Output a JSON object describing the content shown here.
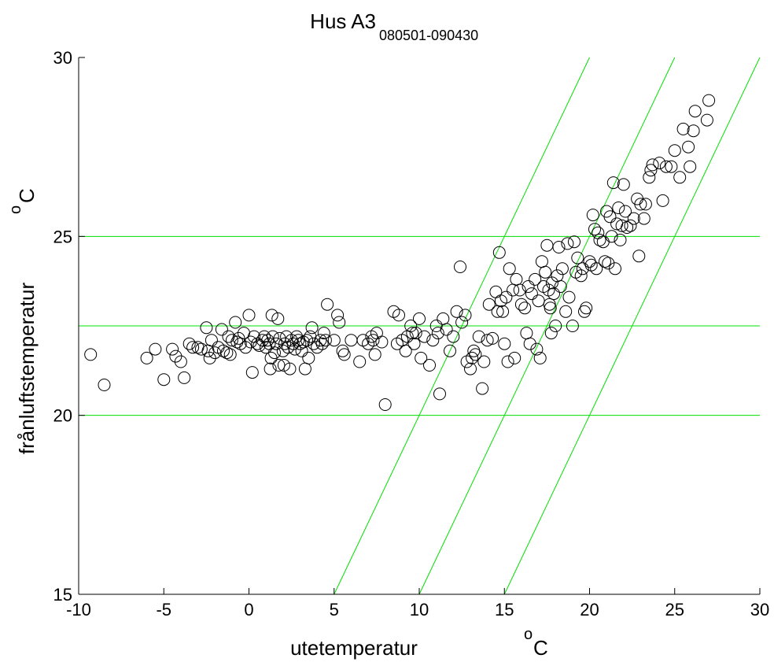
{
  "chart_data": {
    "type": "scatter",
    "title": "Hus A3",
    "subtitle": "080501-090430",
    "xlabel": "utetemperatur",
    "xunit_sup": "o",
    "xunit": "C",
    "ylabel": "frånluftstemperatur",
    "yunit_sup": "o",
    "yunit": "C",
    "xlim": [
      -10,
      30
    ],
    "ylim": [
      15,
      30
    ],
    "xticks": [
      -10,
      -5,
      0,
      5,
      10,
      15,
      20,
      25,
      30
    ],
    "yticks": [
      15,
      20,
      25,
      30
    ],
    "grid": false,
    "marker": "open-circle",
    "marker_color": "#000000",
    "reference_line_color": "#00e000",
    "horizontal_reference_lines": [
      20,
      22.5,
      25
    ],
    "diagonal_reference_lines": [
      {
        "x1": 5,
        "y1": 15,
        "x2": 20,
        "y2": 30
      },
      {
        "x1": 10,
        "y1": 15,
        "x2": 25,
        "y2": 30
      },
      {
        "x1": 15,
        "y1": 15,
        "x2": 30,
        "y2": 30
      }
    ],
    "points": [
      [
        -9.3,
        21.7
      ],
      [
        -8.5,
        20.85
      ],
      [
        -6.0,
        21.6
      ],
      [
        -5.5,
        21.85
      ],
      [
        -5.0,
        21.0
      ],
      [
        -4.5,
        21.85
      ],
      [
        -4.3,
        21.65
      ],
      [
        -4.0,
        21.5
      ],
      [
        -3.8,
        21.05
      ],
      [
        -3.5,
        22.0
      ],
      [
        -3.3,
        21.9
      ],
      [
        -3.0,
        21.9
      ],
      [
        -2.8,
        21.85
      ],
      [
        -2.5,
        22.45
      ],
      [
        -2.4,
        21.8
      ],
      [
        -2.3,
        21.6
      ],
      [
        -2.2,
        22.1
      ],
      [
        -2.0,
        21.75
      ],
      [
        -1.8,
        21.9
      ],
      [
        -1.6,
        22.4
      ],
      [
        -1.5,
        21.8
      ],
      [
        -1.3,
        21.75
      ],
      [
        -1.2,
        22.2
      ],
      [
        -1.1,
        21.7
      ],
      [
        -1.0,
        22.1
      ],
      [
        -0.8,
        22.6
      ],
      [
        -0.7,
        22.05
      ],
      [
        -0.6,
        22.15
      ],
      [
        -0.5,
        22.0
      ],
      [
        -0.3,
        22.3
      ],
      [
        -0.2,
        21.9
      ],
      [
        0.0,
        22.8
      ],
      [
        0.1,
        22.05
      ],
      [
        0.2,
        21.2
      ],
      [
        0.3,
        22.2
      ],
      [
        0.5,
        22.0
      ],
      [
        0.6,
        21.95
      ],
      [
        0.8,
        22.1
      ],
      [
        0.9,
        22.2
      ],
      [
        1.0,
        21.9
      ],
      [
        1.1,
        22.1
      ],
      [
        1.2,
        22.0
      ],
      [
        1.25,
        21.3
      ],
      [
        1.3,
        21.6
      ],
      [
        1.35,
        22.8
      ],
      [
        1.4,
        22.2
      ],
      [
        1.5,
        21.75
      ],
      [
        1.6,
        22.0
      ],
      [
        1.7,
        22.7
      ],
      [
        1.75,
        21.4
      ],
      [
        1.8,
        22.15
      ],
      [
        2.0,
        21.8
      ],
      [
        2.05,
        21.4
      ],
      [
        2.1,
        22.0
      ],
      [
        2.2,
        22.2
      ],
      [
        2.3,
        21.9
      ],
      [
        2.4,
        21.3
      ],
      [
        2.5,
        22.1
      ],
      [
        2.6,
        22.0
      ],
      [
        2.7,
        21.85
      ],
      [
        2.8,
        22.2
      ],
      [
        2.9,
        22.1
      ],
      [
        3.0,
        22.0
      ],
      [
        3.1,
        21.8
      ],
      [
        3.2,
        22.05
      ],
      [
        3.3,
        21.3
      ],
      [
        3.4,
        22.1
      ],
      [
        3.5,
        21.6
      ],
      [
        3.6,
        22.2
      ],
      [
        3.7,
        22.45
      ],
      [
        3.8,
        22.0
      ],
      [
        4.0,
        21.9
      ],
      [
        4.2,
        22.1
      ],
      [
        4.3,
        22.0
      ],
      [
        4.4,
        22.3
      ],
      [
        4.5,
        22.1
      ],
      [
        4.6,
        23.1
      ],
      [
        5.0,
        22.1
      ],
      [
        5.2,
        22.8
      ],
      [
        5.3,
        22.6
      ],
      [
        5.5,
        21.8
      ],
      [
        5.6,
        21.7
      ],
      [
        6.0,
        22.1
      ],
      [
        6.5,
        21.5
      ],
      [
        6.7,
        22.1
      ],
      [
        7.0,
        22.0
      ],
      [
        7.2,
        22.2
      ],
      [
        7.3,
        22.1
      ],
      [
        7.4,
        21.7
      ],
      [
        7.5,
        22.3
      ],
      [
        7.8,
        22.05
      ],
      [
        8.0,
        20.3
      ],
      [
        8.5,
        22.9
      ],
      [
        8.7,
        22.0
      ],
      [
        8.8,
        22.8
      ],
      [
        9.0,
        22.1
      ],
      [
        9.2,
        21.8
      ],
      [
        9.3,
        22.2
      ],
      [
        9.5,
        22.5
      ],
      [
        9.6,
        22.3
      ],
      [
        9.7,
        22.0
      ],
      [
        9.8,
        22.3
      ],
      [
        10.0,
        22.7
      ],
      [
        10.1,
        21.6
      ],
      [
        10.3,
        22.2
      ],
      [
        10.6,
        21.4
      ],
      [
        10.8,
        22.1
      ],
      [
        11.0,
        22.5
      ],
      [
        11.1,
        22.3
      ],
      [
        11.2,
        20.6
      ],
      [
        11.4,
        22.7
      ],
      [
        11.6,
        22.4
      ],
      [
        11.8,
        21.8
      ],
      [
        12.0,
        22.2
      ],
      [
        12.2,
        22.9
      ],
      [
        12.4,
        24.15
      ],
      [
        12.5,
        22.6
      ],
      [
        12.7,
        22.8
      ],
      [
        12.8,
        21.5
      ],
      [
        13.0,
        21.3
      ],
      [
        13.1,
        21.6
      ],
      [
        13.2,
        21.8
      ],
      [
        13.3,
        21.7
      ],
      [
        13.5,
        22.2
      ],
      [
        13.7,
        20.75
      ],
      [
        13.8,
        21.5
      ],
      [
        14.0,
        22.1
      ],
      [
        14.1,
        23.1
      ],
      [
        14.3,
        22.15
      ],
      [
        14.5,
        23.45
      ],
      [
        14.6,
        22.9
      ],
      [
        14.7,
        24.55
      ],
      [
        14.8,
        23.2
      ],
      [
        14.9,
        22.9
      ],
      [
        15.0,
        22.0
      ],
      [
        15.1,
        23.3
      ],
      [
        15.2,
        21.5
      ],
      [
        15.3,
        24.1
      ],
      [
        15.5,
        23.5
      ],
      [
        15.6,
        21.6
      ],
      [
        15.7,
        23.8
      ],
      [
        15.9,
        23.5
      ],
      [
        16.0,
        23.1
      ],
      [
        16.2,
        23.0
      ],
      [
        16.3,
        22.3
      ],
      [
        16.4,
        23.6
      ],
      [
        16.5,
        22.0
      ],
      [
        16.6,
        23.4
      ],
      [
        16.8,
        23.8
      ],
      [
        16.9,
        21.85
      ],
      [
        17.0,
        23.2
      ],
      [
        17.1,
        21.6
      ],
      [
        17.2,
        24.3
      ],
      [
        17.3,
        23.6
      ],
      [
        17.4,
        24.0
      ],
      [
        17.5,
        24.75
      ],
      [
        17.6,
        23.5
      ],
      [
        17.65,
        23.1
      ],
      [
        17.7,
        23.0
      ],
      [
        17.75,
        22.3
      ],
      [
        17.8,
        23.7
      ],
      [
        17.9,
        23.4
      ],
      [
        18.0,
        22.5
      ],
      [
        18.1,
        23.9
      ],
      [
        18.2,
        24.7
      ],
      [
        18.3,
        23.6
      ],
      [
        18.4,
        24.1
      ],
      [
        18.6,
        22.9
      ],
      [
        18.7,
        24.8
      ],
      [
        18.8,
        23.3
      ],
      [
        19.0,
        22.5
      ],
      [
        19.1,
        24.85
      ],
      [
        19.2,
        24.0
      ],
      [
        19.3,
        24.4
      ],
      [
        19.5,
        23.9
      ],
      [
        19.6,
        24.1
      ],
      [
        19.7,
        22.9
      ],
      [
        19.8,
        23.0
      ],
      [
        20.0,
        24.3
      ],
      [
        20.1,
        24.2
      ],
      [
        20.2,
        25.6
      ],
      [
        20.3,
        25.2
      ],
      [
        20.4,
        24.1
      ],
      [
        20.5,
        25.1
      ],
      [
        20.6,
        24.9
      ],
      [
        20.8,
        24.85
      ],
      [
        20.9,
        24.3
      ],
      [
        21.0,
        25.7
      ],
      [
        21.1,
        24.25
      ],
      [
        21.2,
        25.55
      ],
      [
        21.3,
        25.0
      ],
      [
        21.4,
        26.5
      ],
      [
        21.5,
        24.1
      ],
      [
        21.6,
        25.35
      ],
      [
        21.7,
        25.8
      ],
      [
        21.8,
        24.9
      ],
      [
        21.9,
        25.3
      ],
      [
        22.0,
        26.45
      ],
      [
        22.1,
        25.7
      ],
      [
        22.2,
        25.25
      ],
      [
        22.4,
        25.3
      ],
      [
        22.6,
        25.5
      ],
      [
        22.8,
        26.05
      ],
      [
        22.9,
        24.45
      ],
      [
        23.0,
        25.9
      ],
      [
        23.2,
        25.5
      ],
      [
        23.3,
        25.9
      ],
      [
        23.5,
        26.65
      ],
      [
        23.6,
        26.85
      ],
      [
        23.7,
        27.0
      ],
      [
        24.1,
        27.05
      ],
      [
        24.3,
        26.0
      ],
      [
        24.5,
        26.95
      ],
      [
        24.8,
        26.95
      ],
      [
        25.0,
        27.4
      ],
      [
        25.3,
        26.65
      ],
      [
        25.5,
        28.0
      ],
      [
        25.8,
        27.5
      ],
      [
        25.9,
        26.95
      ],
      [
        26.1,
        27.95
      ],
      [
        26.2,
        28.5
      ],
      [
        26.9,
        28.25
      ],
      [
        27.0,
        28.8
      ]
    ]
  }
}
